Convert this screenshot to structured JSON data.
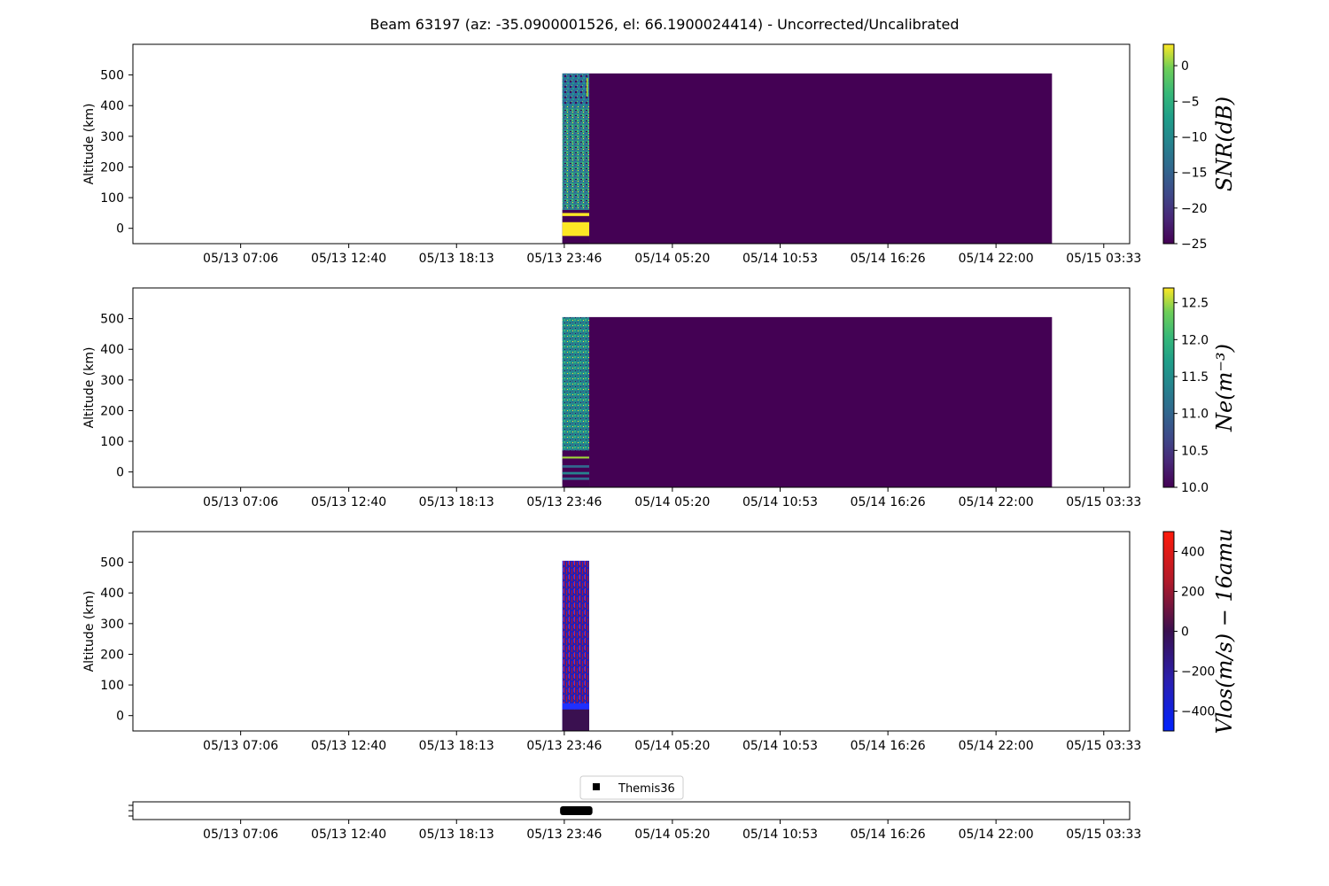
{
  "title": "Beam 63197 (az: -35.0900001526, el: 66.1900024414) - Uncorrected/Uncalibrated",
  "chart_data": {
    "type": "heatmap",
    "time_start": "05/13 01:33",
    "time_end": "05/15 04:53",
    "x_tick_labels": [
      "05/13 07:06",
      "05/13 12:40",
      "05/13 18:13",
      "05/13 23:46",
      "05/14 05:20",
      "05/14 10:53",
      "05/14 16:26",
      "05/14 22:00",
      "05/15 03:33"
    ],
    "data_coverage": {
      "start": "05/13 23:40",
      "dense_end": "05/14 01:03",
      "end": "05/15 00:53",
      "alt_range": [
        -50,
        505
      ]
    },
    "panels": [
      {
        "id": "snr",
        "ylabel": "Altitude (km)",
        "ylim": [
          -50,
          600
        ],
        "y_ticks": [
          0,
          100,
          200,
          300,
          400,
          500
        ],
        "colorbar_label": "SNR(dB)",
        "colormap": "viridis",
        "clim": [
          -25,
          3
        ],
        "colorbar_ticks": [
          0,
          -5,
          -10,
          -15,
          -20,
          -25
        ],
        "colorbar_tick_labels": [
          "0",
          "−5",
          "−10",
          "−15",
          "−20",
          "−25"
        ]
      },
      {
        "id": "ne",
        "ylabel": "Altitude (km)",
        "ylim": [
          -50,
          600
        ],
        "y_ticks": [
          0,
          100,
          200,
          300,
          400,
          500
        ],
        "colorbar_label": "Ne(m⁻³)",
        "colormap": "viridis",
        "clim": [
          10,
          12.7
        ],
        "colorbar_ticks": [
          12.5,
          12,
          11.5,
          11,
          10.5,
          10
        ],
        "colorbar_tick_labels": [
          "12.5",
          "12.0",
          "11.5",
          "11.0",
          "10.5",
          "10.0"
        ]
      },
      {
        "id": "vlos",
        "ylabel": "Altitude (km)",
        "ylim": [
          -50,
          600
        ],
        "y_ticks": [
          0,
          100,
          200,
          300,
          400,
          500
        ],
        "colorbar_label": "Vlos(m/s) − 16amu",
        "colormap": "bwr-dark",
        "clim": [
          -500,
          500
        ],
        "colorbar_ticks": [
          400,
          200,
          0,
          -200,
          -400
        ],
        "colorbar_tick_labels": [
          "400",
          "200",
          "0",
          "−200",
          "−400"
        ]
      }
    ],
    "events": [
      {
        "name": "Themis36",
        "start": "05/13 23:33",
        "end": "05/14 01:13",
        "color": "#000000"
      }
    ],
    "legend_placement": "above-bottom-panel",
    "grid": false
  }
}
